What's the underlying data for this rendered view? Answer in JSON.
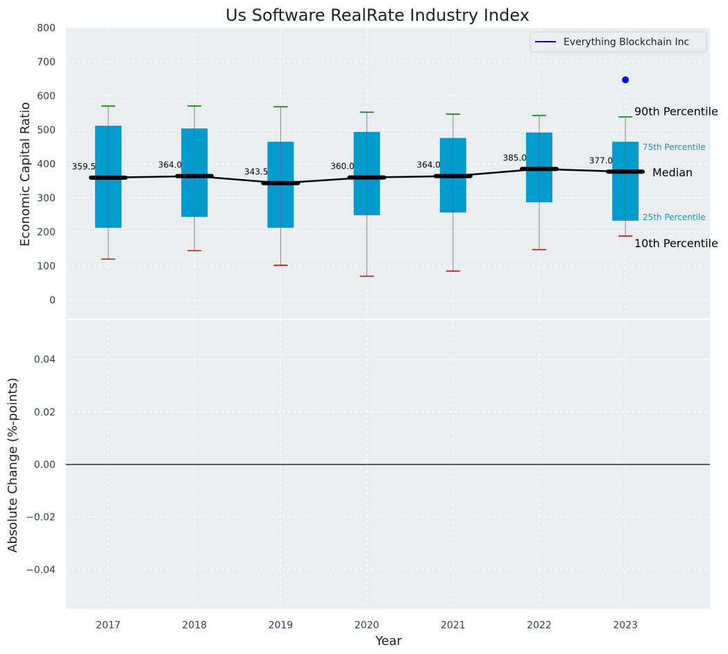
{
  "colors": {
    "panel_bg": "#eaeef0",
    "box": "#009bcc",
    "whisker_hi": "#008000",
    "whisker_lo": "#dd0000",
    "median_line": "#000000",
    "company": "#0000ff",
    "label_25_75": "#0a9bc0"
  },
  "chart_data": [
    {
      "type": "box",
      "title": "Us Software RealRate Industry Index",
      "ylabel": "Economic Capital Ratio",
      "xlabel": "",
      "ylim": [
        -55,
        800
      ],
      "yticks": [
        0,
        100,
        200,
        300,
        400,
        500,
        600,
        700,
        800
      ],
      "grid": true,
      "categories": [
        "2017",
        "2018",
        "2019",
        "2020",
        "2021",
        "2022",
        "2023"
      ],
      "p10": [
        120,
        145,
        102,
        70,
        85,
        148,
        188
      ],
      "p25": [
        212,
        244,
        212,
        249,
        257,
        287,
        233
      ],
      "median": [
        359.5,
        364.0,
        343.5,
        360.0,
        364.0,
        385.0,
        377.0
      ],
      "p75": [
        512,
        504,
        465,
        494,
        476,
        492,
        465
      ],
      "p90": [
        570,
        570,
        568,
        552,
        546,
        542,
        538
      ],
      "median_labels": [
        "359.5",
        "364.0",
        "343.5",
        "360.0",
        "364.0",
        "385.0",
        "377.0"
      ],
      "company_series": {
        "name": "Everything Blockchain Inc",
        "points": [
          {
            "x": "2023",
            "y": 647
          }
        ]
      },
      "annotations": {
        "p90": "90th Percentile",
        "p75": "75th Percentile",
        "median": "Median",
        "p25": "25th Percentile",
        "p10": "10th Percentile"
      },
      "legend": {
        "position": "top-right",
        "entries": [
          "Everything Blockchain Inc"
        ]
      }
    },
    {
      "type": "line",
      "title": "",
      "ylabel": "Absolute Change (%-points)",
      "xlabel": "Year",
      "ylim": [
        -0.055,
        0.055
      ],
      "yticks": [
        -0.04,
        -0.02,
        0.0,
        0.02,
        0.04
      ],
      "ytick_labels": [
        "−0.04",
        "−0.02",
        "0.00",
        "0.02",
        "0.04"
      ],
      "grid": true,
      "categories": [
        "2017",
        "2018",
        "2019",
        "2020",
        "2021",
        "2022",
        "2023"
      ],
      "reference_line": 0.0,
      "series": []
    }
  ]
}
